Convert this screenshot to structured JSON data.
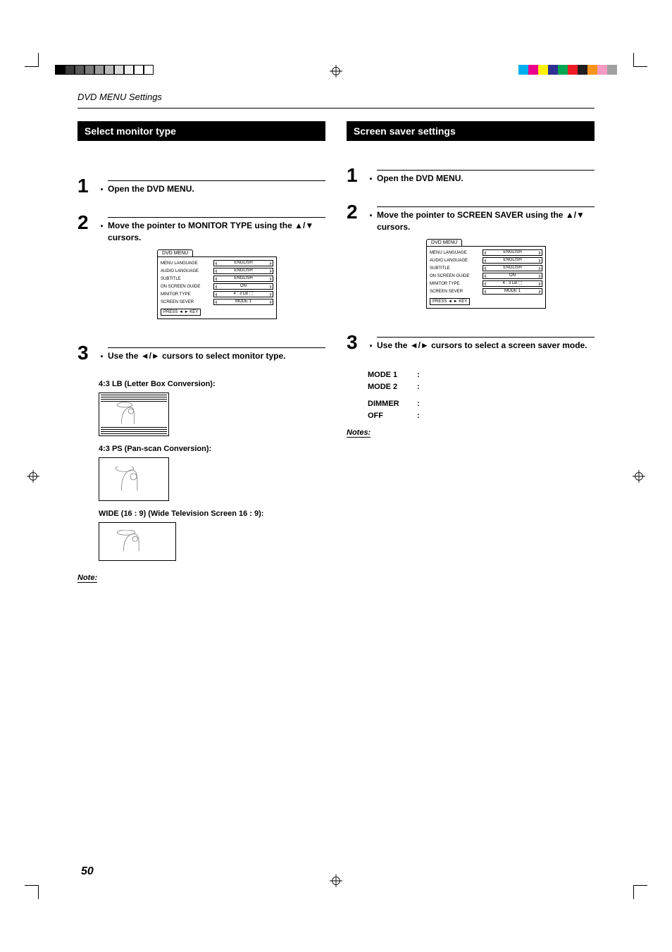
{
  "header": "DVD MENU Settings",
  "page_number": "50",
  "colorbar_left": [
    "#000000",
    "#3a3a3a",
    "#5a5a5a",
    "#7a7a7a",
    "#9a9a9a",
    "#bababa",
    "#dadada",
    "#f0f0f0",
    "#ffffff",
    "#ffffff"
  ],
  "colorbar_right": [
    "#00aeef",
    "#ec008c",
    "#fff200",
    "#2e3192",
    "#00a651",
    "#ed1c24",
    "#231f20",
    "#f7941d",
    "#f49ac1",
    "#a0a0a0"
  ],
  "left_section_title": "Select monitor type",
  "right_section_title": "Screen saver settings",
  "steps_left": {
    "s1": "Open the DVD MENU.",
    "s2": "Move the pointer to MONITOR TYPE using the ▲/▼ cursors.",
    "s3": "Use the ◄/► cursors to select monitor type."
  },
  "steps_right": {
    "s1": "Open the DVD MENU.",
    "s2": "Move the pointer to SCREEN SAVER using the ▲/▼ cursors.",
    "s3": "Use the ◄/► cursors to select a screen saver mode."
  },
  "menu_mock": {
    "title": "DVD MENU",
    "rows": [
      {
        "label": "MENU LANGUAGE",
        "value": "ENGLISH"
      },
      {
        "label": "AUDIO LANGUAGE",
        "value": "ENGLISH"
      },
      {
        "label": "SUBTITLE",
        "value": "ENGLISH"
      },
      {
        "label": "ON SCREEN GUIDE",
        "value": "ON"
      },
      {
        "label": "MINITOR TYPE",
        "value": "4 : 3 LB ⬚"
      },
      {
        "label": "SCREEN SEVER",
        "value": "MODE 1"
      }
    ],
    "press": "PRESS ◄ ► KEY"
  },
  "monitor_types": {
    "lb": "4:3 LB (Letter Box Conversion):",
    "ps": "4:3 PS (Pan-scan Conversion):",
    "wide": "WIDE (16 : 9) (Wide Television Screen 16 : 9):"
  },
  "modes": {
    "m1": "MODE 1",
    "m2": "MODE 2",
    "dimmer": "DIMMER",
    "off": "OFF"
  },
  "note_label": "Note:",
  "notes_label": "Notes:"
}
